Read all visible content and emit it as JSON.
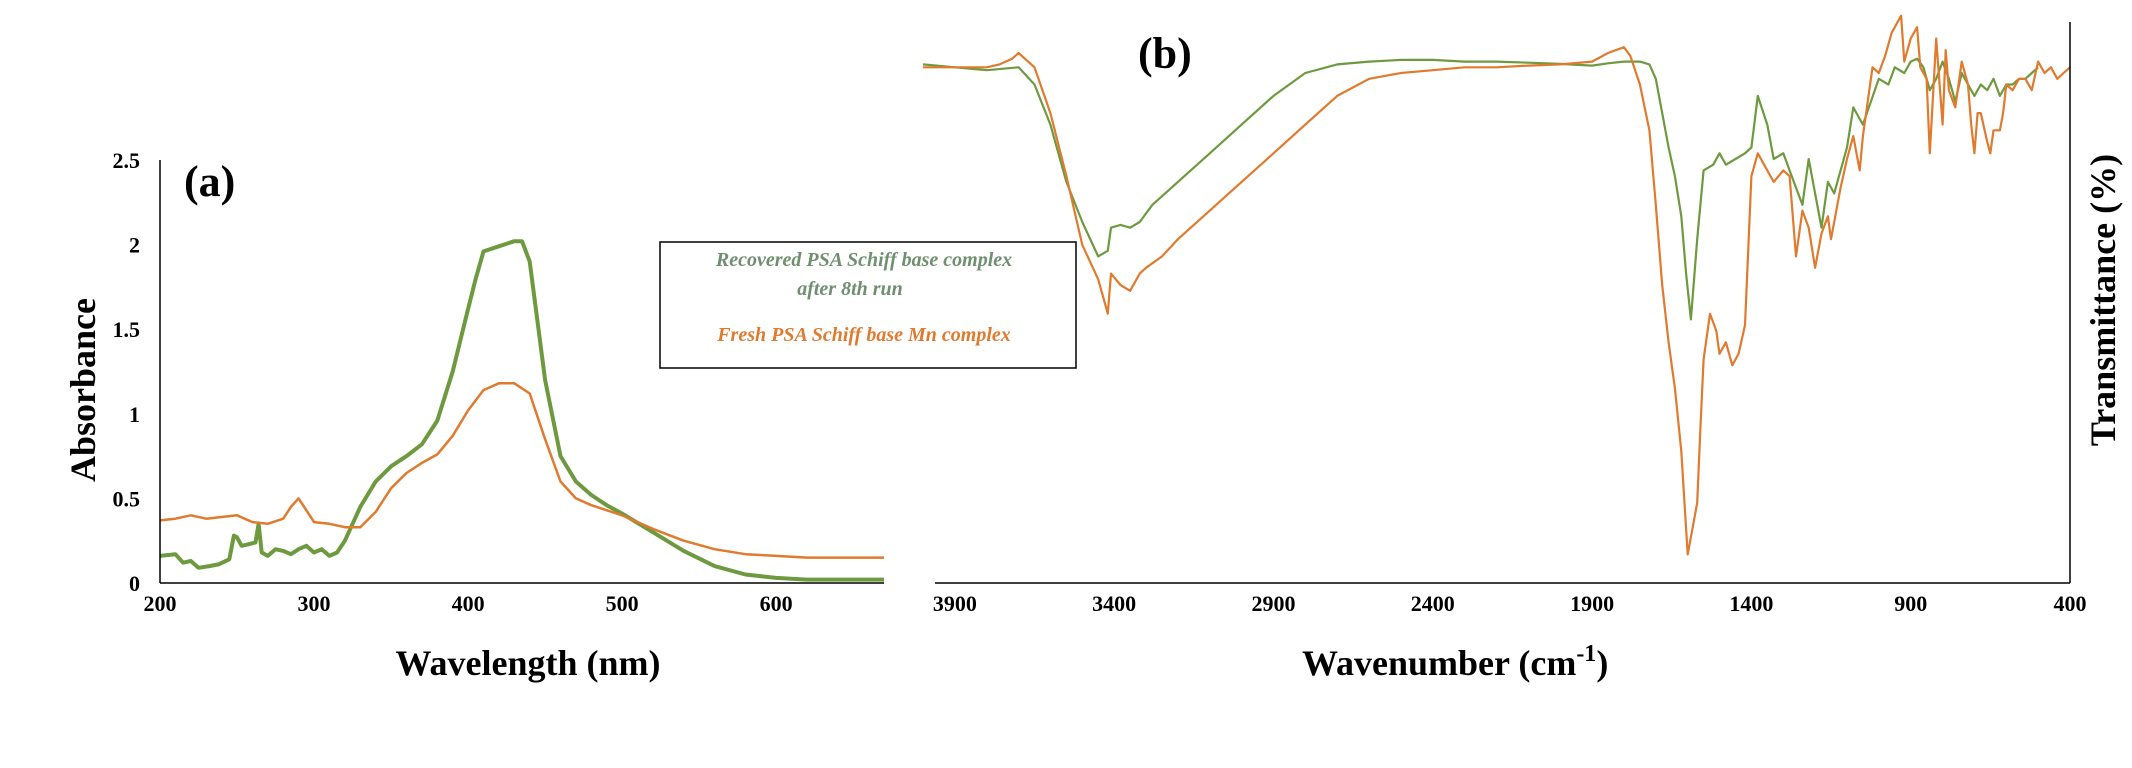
{
  "colors": {
    "green": "#6e9a3f",
    "orange": "#e07a2e",
    "legend_green_text": "#6f8f70",
    "axis": "#000000"
  },
  "chart_data": [
    {
      "type": "line",
      "panel_label": "(a)",
      "xlabel": "Wavelength (nm)",
      "ylabel": "Absorbance",
      "xlim": [
        200,
        670
      ],
      "ylim": [
        0,
        2.5
      ],
      "xticks": [
        "200",
        "300",
        "400",
        "500",
        "600"
      ],
      "yticks": [
        "0",
        "0.5",
        "1",
        "1.5",
        "2",
        "2.5"
      ],
      "legend_placement": "top-right",
      "legend": [
        "Recovered PSA Schiff base complex",
        "after 8th run",
        "Fresh PSA Schiff base Mn complex"
      ],
      "series": [
        {
          "name": "Recovered PSA Schiff base complex after 8th run",
          "color": "green",
          "x": [
            200,
            210,
            215,
            220,
            225,
            232,
            238,
            245,
            248,
            250,
            253,
            258,
            262,
            264,
            266,
            270,
            275,
            280,
            285,
            290,
            295,
            300,
            305,
            310,
            315,
            320,
            330,
            340,
            350,
            360,
            370,
            380,
            390,
            400,
            405,
            410,
            420,
            430,
            435,
            440,
            450,
            460,
            470,
            480,
            490,
            500,
            520,
            540,
            560,
            580,
            600,
            620,
            640,
            670
          ],
          "y": [
            0.16,
            0.17,
            0.12,
            0.13,
            0.09,
            0.1,
            0.11,
            0.14,
            0.28,
            0.27,
            0.22,
            0.23,
            0.24,
            0.35,
            0.18,
            0.16,
            0.2,
            0.19,
            0.17,
            0.2,
            0.22,
            0.18,
            0.2,
            0.16,
            0.18,
            0.25,
            0.45,
            0.6,
            0.69,
            0.75,
            0.82,
            0.96,
            1.25,
            1.62,
            1.8,
            1.96,
            1.99,
            2.02,
            2.02,
            1.9,
            1.2,
            0.75,
            0.6,
            0.52,
            0.46,
            0.41,
            0.3,
            0.19,
            0.1,
            0.05,
            0.03,
            0.02,
            0.02,
            0.02
          ]
        },
        {
          "name": "Fresh PSA Schiff base Mn complex",
          "color": "orange",
          "x": [
            200,
            210,
            220,
            230,
            240,
            250,
            260,
            270,
            280,
            285,
            290,
            295,
            300,
            310,
            320,
            330,
            340,
            350,
            360,
            370,
            380,
            390,
            400,
            410,
            420,
            430,
            440,
            450,
            460,
            470,
            480,
            500,
            520,
            540,
            560,
            580,
            600,
            620,
            640,
            670
          ],
          "y": [
            0.37,
            0.38,
            0.4,
            0.38,
            0.39,
            0.4,
            0.36,
            0.35,
            0.38,
            0.45,
            0.5,
            0.43,
            0.36,
            0.35,
            0.33,
            0.33,
            0.42,
            0.56,
            0.65,
            0.71,
            0.76,
            0.87,
            1.02,
            1.14,
            1.18,
            1.18,
            1.12,
            0.85,
            0.6,
            0.5,
            0.46,
            0.4,
            0.32,
            0.25,
            0.2,
            0.17,
            0.16,
            0.15,
            0.15,
            0.15
          ]
        }
      ]
    },
    {
      "type": "line",
      "panel_label": "(b)",
      "xlabel_main": "Wavenumber (cm",
      "xlabel_sup": "-1",
      "xlabel_end": ")",
      "ylabel": "Transmittance (%)",
      "xlim": [
        4000,
        400
      ],
      "ylim": [
        0,
        100
      ],
      "xticks": [
        "3900",
        "3400",
        "2900",
        "2400",
        "1900",
        "1400",
        "900",
        "400"
      ],
      "series": [
        {
          "name": "Recovered PSA Schiff base complex after 8th run",
          "color": "green",
          "x": [
            4000,
            3900,
            3800,
            3700,
            3650,
            3600,
            3550,
            3500,
            3450,
            3420,
            3410,
            3380,
            3350,
            3320,
            3280,
            3200,
            3100,
            3000,
            2900,
            2800,
            2700,
            2600,
            2500,
            2400,
            2300,
            2200,
            2100,
            2000,
            1900,
            1850,
            1800,
            1750,
            1720,
            1700,
            1680,
            1660,
            1640,
            1620,
            1605,
            1590,
            1570,
            1550,
            1520,
            1500,
            1480,
            1450,
            1420,
            1400,
            1380,
            1350,
            1330,
            1300,
            1280,
            1260,
            1240,
            1220,
            1200,
            1180,
            1160,
            1140,
            1100,
            1080,
            1050,
            1000,
            970,
            950,
            920,
            900,
            880,
            860,
            840,
            820,
            800,
            780,
            760,
            740,
            720,
            700,
            680,
            660,
            640,
            620,
            600,
            580,
            560,
            540,
            520,
            500
          ],
          "y": [
            90.5,
            90,
            89.5,
            90,
            87,
            80,
            70,
            63,
            57,
            58,
            62,
            62.5,
            62,
            63,
            66,
            70,
            75,
            80,
            85,
            89,
            90.5,
            91,
            91.3,
            91.3,
            91,
            91,
            90.8,
            90.6,
            90.3,
            90.7,
            91,
            91,
            90.5,
            88,
            82,
            76,
            71,
            64,
            54,
            46,
            60,
            72,
            73,
            75,
            73,
            74,
            75,
            76,
            85,
            80,
            74,
            75,
            72,
            69,
            66,
            74,
            68,
            62,
            70,
            68,
            76,
            83,
            80,
            88,
            87,
            90,
            89,
            91,
            91.5,
            90,
            86,
            88,
            91,
            88,
            84,
            89,
            87,
            85,
            87,
            86,
            88,
            85,
            87,
            87,
            88,
            88,
            89,
            90
          ]
        },
        {
          "name": "Fresh PSA Schiff base Mn complex",
          "color": "orange",
          "x": [
            4000,
            3900,
            3800,
            3760,
            3720,
            3700,
            3650,
            3600,
            3550,
            3500,
            3450,
            3420,
            3410,
            3380,
            3350,
            3320,
            3300,
            3250,
            3200,
            3100,
            3000,
            2900,
            2800,
            2700,
            2600,
            2500,
            2400,
            2300,
            2200,
            2100,
            2000,
            1900,
            1850,
            1800,
            1780,
            1750,
            1720,
            1700,
            1680,
            1660,
            1640,
            1620,
            1600,
            1590,
            1570,
            1560,
            1550,
            1530,
            1510,
            1500,
            1480,
            1460,
            1440,
            1420,
            1400,
            1380,
            1360,
            1330,
            1300,
            1280,
            1260,
            1240,
            1220,
            1200,
            1180,
            1160,
            1150,
            1120,
            1100,
            1080,
            1060,
            1050,
            1020,
            1000,
            980,
            960,
            950,
            930,
            920,
            910,
            900,
            880,
            870,
            850,
            840,
            820,
            800,
            790,
            780,
            760,
            740,
            720,
            710,
            700,
            690,
            680,
            660,
            650,
            640,
            620,
            610,
            600,
            580,
            560,
            540,
            520,
            500,
            480,
            460,
            440,
            420,
            400
          ],
          "y": [
            90,
            90,
            90,
            90.5,
            91.5,
            92.5,
            90,
            82,
            71,
            59,
            53,
            47,
            54,
            52,
            51,
            54,
            55,
            57,
            60,
            65,
            70,
            75,
            80,
            85,
            88,
            89,
            89.5,
            90,
            90,
            90.3,
            90.5,
            91,
            92.5,
            93.5,
            92,
            87,
            79,
            66,
            52,
            42,
            34,
            23,
            5,
            8,
            14,
            27,
            39,
            47,
            44,
            40,
            42,
            38,
            40,
            45,
            71,
            75,
            73,
            70,
            72,
            71,
            57,
            65,
            62,
            55,
            61,
            64,
            60,
            69,
            74,
            78,
            72,
            78,
            90,
            89,
            92,
            96,
            97,
            99,
            91,
            93,
            95,
            97,
            90,
            88,
            75,
            95,
            80,
            93,
            86,
            83,
            91,
            87,
            80,
            75,
            82,
            82,
            77,
            75,
            79,
            79,
            82,
            87,
            86,
            88,
            88,
            86,
            91,
            89,
            90,
            88,
            89,
            90
          ]
        }
      ]
    }
  ]
}
